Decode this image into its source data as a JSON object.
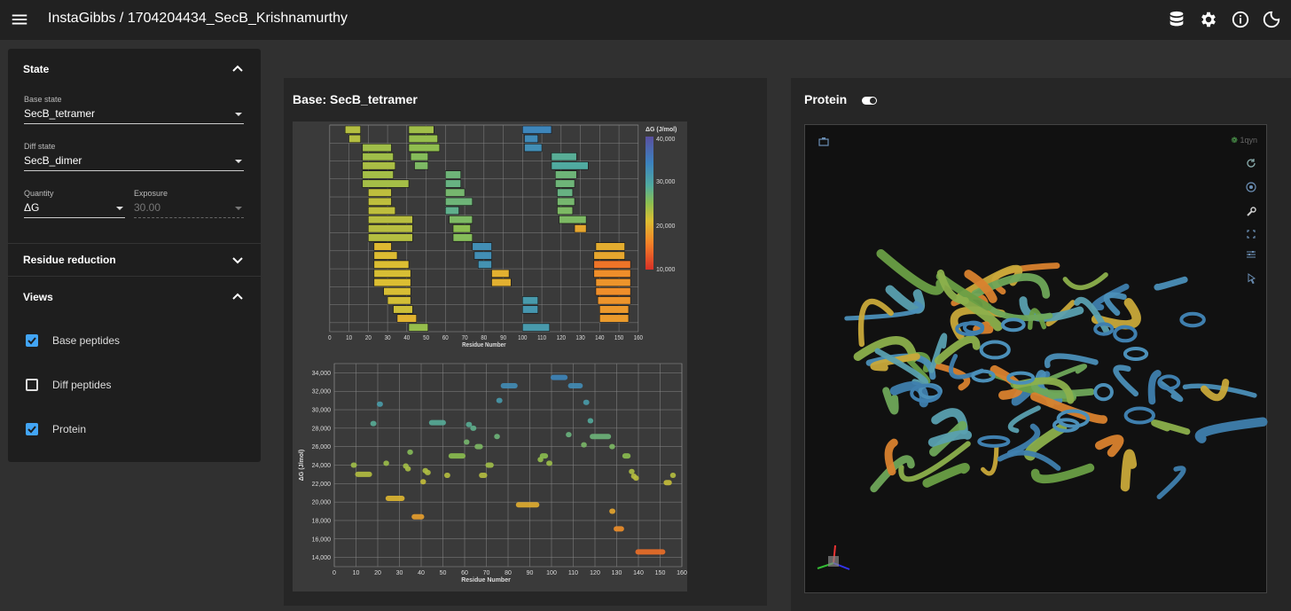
{
  "header": {
    "title": "InstaGibbs / 1704204434_SecB_Krishnamurthy",
    "icons": [
      "menu-icon",
      "database-icon",
      "gear-icon",
      "info-icon",
      "dark-mode-icon"
    ]
  },
  "sidebar": {
    "state": {
      "title": "State",
      "base_state_label": "Base state",
      "base_state_value": "SecB_tetramer",
      "diff_state_label": "Diff state",
      "diff_state_value": "SecB_dimer",
      "quantity_label": "Quantity",
      "quantity_value": "ΔG",
      "exposure_label": "Exposure",
      "exposure_value": "30.00"
    },
    "residue_reduction": {
      "title": "Residue reduction"
    },
    "views": {
      "title": "Views",
      "items": [
        {
          "label": "Base peptides",
          "checked": true
        },
        {
          "label": "Diff peptides",
          "checked": false
        },
        {
          "label": "Protein",
          "checked": true
        }
      ]
    }
  },
  "base_panel": {
    "title": "Base: SecB_tetramer"
  },
  "protein_panel": {
    "title": "Protein",
    "pdb_id": "1qyn"
  },
  "colors": {
    "accent": "#42a5f5",
    "background": "#303030",
    "panel": "#262626",
    "topbar": "#212121"
  },
  "chart_data": [
    {
      "type": "bar",
      "description_free": true,
      "xlabel": "Residue Number",
      "x_ticks": [
        0,
        10,
        20,
        30,
        40,
        50,
        60,
        70,
        80,
        90,
        100,
        110,
        120,
        130,
        140,
        150,
        160
      ],
      "xlim": [
        0,
        160
      ],
      "legend": {
        "title": "ΔG (J/mol)",
        "ticks": [
          "40,000",
          "30,000",
          "20,000",
          "10,000"
        ],
        "range": [
          10000,
          40000
        ],
        "placement": "top-right"
      },
      "peptides": [
        {
          "start": 8,
          "end": 16,
          "row": 0,
          "dG": 23000
        },
        {
          "start": 10,
          "end": 16,
          "row": 1,
          "dG": 23000
        },
        {
          "start": 17,
          "end": 32,
          "row": 2,
          "dG": 24000
        },
        {
          "start": 17,
          "end": 33,
          "row": 3,
          "dG": 24000
        },
        {
          "start": 17,
          "end": 34,
          "row": 4,
          "dG": 23500
        },
        {
          "start": 17,
          "end": 33,
          "row": 5,
          "dG": 23800
        },
        {
          "start": 17,
          "end": 41,
          "row": 6,
          "dG": 23800
        },
        {
          "start": 20,
          "end": 32,
          "row": 7,
          "dG": 22500
        },
        {
          "start": 20,
          "end": 32,
          "row": 8,
          "dG": 22500
        },
        {
          "start": 20,
          "end": 34,
          "row": 9,
          "dG": 22500
        },
        {
          "start": 20,
          "end": 43,
          "row": 10,
          "dG": 22800
        },
        {
          "start": 20,
          "end": 43,
          "row": 11,
          "dG": 22800
        },
        {
          "start": 20,
          "end": 43,
          "row": 12,
          "dG": 23000
        },
        {
          "start": 23,
          "end": 32,
          "row": 13,
          "dG": 20500
        },
        {
          "start": 23,
          "end": 35,
          "row": 14,
          "dG": 20800
        },
        {
          "start": 23,
          "end": 41,
          "row": 15,
          "dG": 21000
        },
        {
          "start": 23,
          "end": 42,
          "row": 16,
          "dG": 21200
        },
        {
          "start": 23,
          "end": 42,
          "row": 17,
          "dG": 21000
        },
        {
          "start": 28,
          "end": 42,
          "row": 18,
          "dG": 21200
        },
        {
          "start": 30,
          "end": 42,
          "row": 19,
          "dG": 21500
        },
        {
          "start": 33,
          "end": 43,
          "row": 20,
          "dG": 21800
        },
        {
          "start": 35,
          "end": 45,
          "row": 21,
          "dG": 20000
        },
        {
          "start": 41,
          "end": 51,
          "row": 22,
          "dG": 24500
        },
        {
          "start": 41,
          "end": 54,
          "row": 0,
          "dG": 24000
        },
        {
          "start": 41,
          "end": 56,
          "row": 1,
          "dG": 24500
        },
        {
          "start": 41,
          "end": 57,
          "row": 2,
          "dG": 24800
        },
        {
          "start": 42,
          "end": 51,
          "row": 3,
          "dG": 25500
        },
        {
          "start": 44,
          "end": 51,
          "row": 4,
          "dG": 26000
        },
        {
          "start": 60,
          "end": 68,
          "row": 5,
          "dG": 27000
        },
        {
          "start": 60,
          "end": 68,
          "row": 6,
          "dG": 27500
        },
        {
          "start": 60,
          "end": 70,
          "row": 7,
          "dG": 26500
        },
        {
          "start": 60,
          "end": 74,
          "row": 8,
          "dG": 27000
        },
        {
          "start": 60,
          "end": 67,
          "row": 9,
          "dG": 28000
        },
        {
          "start": 62,
          "end": 74,
          "row": 10,
          "dG": 26000
        },
        {
          "start": 64,
          "end": 73,
          "row": 11,
          "dG": 25000
        },
        {
          "start": 64,
          "end": 74,
          "row": 12,
          "dG": 25500
        },
        {
          "start": 74,
          "end": 84,
          "row": 13,
          "dG": 32500
        },
        {
          "start": 75,
          "end": 84,
          "row": 14,
          "dG": 32500
        },
        {
          "start": 77,
          "end": 84,
          "row": 15,
          "dG": 32000
        },
        {
          "start": 84,
          "end": 93,
          "row": 16,
          "dG": 19800
        },
        {
          "start": 84,
          "end": 94,
          "row": 17,
          "dG": 19800
        },
        {
          "start": 100,
          "end": 115,
          "row": 0,
          "dG": 33500
        },
        {
          "start": 101,
          "end": 108,
          "row": 1,
          "dG": 33000
        },
        {
          "start": 101,
          "end": 110,
          "row": 2,
          "dG": 32500
        },
        {
          "start": 115,
          "end": 128,
          "row": 3,
          "dG": 28500
        },
        {
          "start": 115,
          "end": 134,
          "row": 4,
          "dG": 29000
        },
        {
          "start": 117,
          "end": 128,
          "row": 5,
          "dG": 27000
        },
        {
          "start": 117,
          "end": 127,
          "row": 6,
          "dG": 27000
        },
        {
          "start": 118,
          "end": 126,
          "row": 7,
          "dG": 27500
        },
        {
          "start": 118,
          "end": 127,
          "row": 8,
          "dG": 26500
        },
        {
          "start": 118,
          "end": 126,
          "row": 9,
          "dG": 26000
        },
        {
          "start": 119,
          "end": 133,
          "row": 10,
          "dG": 26000
        },
        {
          "start": 127,
          "end": 133,
          "row": 11,
          "dG": 19000
        },
        {
          "start": 138,
          "end": 153,
          "row": 13,
          "dG": 19500
        },
        {
          "start": 137,
          "end": 153,
          "row": 14,
          "dG": 19000
        },
        {
          "start": 137,
          "end": 156,
          "row": 15,
          "dG": 15000
        },
        {
          "start": 137,
          "end": 156,
          "row": 16,
          "dG": 17000
        },
        {
          "start": 138,
          "end": 156,
          "row": 17,
          "dG": 17500
        },
        {
          "start": 138,
          "end": 156,
          "row": 18,
          "dG": 17000
        },
        {
          "start": 139,
          "end": 156,
          "row": 19,
          "dG": 17500
        },
        {
          "start": 140,
          "end": 155,
          "row": 20,
          "dG": 17800
        },
        {
          "start": 140,
          "end": 155,
          "row": 21,
          "dG": 18000
        },
        {
          "start": 100,
          "end": 108,
          "row": 19,
          "dG": 31000
        },
        {
          "start": 100,
          "end": 108,
          "row": 20,
          "dG": 31500
        },
        {
          "start": 100,
          "end": 114,
          "row": 22,
          "dG": 31000
        }
      ]
    },
    {
      "type": "scatter",
      "xlabel": "Residue Number",
      "ylabel": "ΔG (J/mol)",
      "x_ticks": [
        0,
        10,
        20,
        30,
        40,
        50,
        60,
        70,
        80,
        90,
        100,
        110,
        120,
        130,
        140,
        150,
        160
      ],
      "y_ticks": [
        "14,000",
        "16,000",
        "18,000",
        "20,000",
        "22,000",
        "24,000",
        "26,000",
        "28,000",
        "30,000",
        "32,000",
        "34,000"
      ],
      "xlim": [
        0,
        160
      ],
      "ylim": [
        13000,
        35000
      ],
      "segments": [
        {
          "start": 8,
          "end": 10,
          "dG": 24000
        },
        {
          "start": 10,
          "end": 17,
          "dG": 23000
        },
        {
          "start": 17,
          "end": 19,
          "dG": 28500
        },
        {
          "start": 20,
          "end": 22,
          "dG": 30600
        },
        {
          "start": 23,
          "end": 24,
          "dG": 24200
        },
        {
          "start": 24,
          "end": 32,
          "dG": 20400
        },
        {
          "start": 32,
          "end": 33,
          "dG": 23900
        },
        {
          "start": 33,
          "end": 34,
          "dG": 23600
        },
        {
          "start": 34,
          "end": 35,
          "dG": 25400
        },
        {
          "start": 36,
          "end": 41,
          "dG": 18400
        },
        {
          "start": 40,
          "end": 41,
          "dG": 22200
        },
        {
          "start": 41,
          "end": 42,
          "dG": 23400
        },
        {
          "start": 42,
          "end": 44,
          "dG": 23200
        },
        {
          "start": 44,
          "end": 51,
          "dG": 28600
        },
        {
          "start": 51,
          "end": 53,
          "dG": 22900
        },
        {
          "start": 53,
          "end": 60,
          "dG": 25000
        },
        {
          "start": 60,
          "end": 61,
          "dG": 26500
        },
        {
          "start": 61,
          "end": 63,
          "dG": 28400
        },
        {
          "start": 63,
          "end": 65,
          "dG": 28000
        },
        {
          "start": 65,
          "end": 68,
          "dG": 26000
        },
        {
          "start": 67,
          "end": 70,
          "dG": 22900
        },
        {
          "start": 70,
          "end": 73,
          "dG": 24000
        },
        {
          "start": 74,
          "end": 75,
          "dG": 27100
        },
        {
          "start": 75,
          "end": 77,
          "dG": 31000
        },
        {
          "start": 77,
          "end": 84,
          "dG": 32600
        },
        {
          "start": 84,
          "end": 94,
          "dG": 19700
        },
        {
          "start": 94,
          "end": 95,
          "dG": 24600
        },
        {
          "start": 95,
          "end": 98,
          "dG": 25000
        },
        {
          "start": 98,
          "end": 100,
          "dG": 24200
        },
        {
          "start": 100,
          "end": 107,
          "dG": 33500
        },
        {
          "start": 107,
          "end": 108,
          "dG": 27300
        },
        {
          "start": 108,
          "end": 114,
          "dG": 32600
        },
        {
          "start": 114,
          "end": 115,
          "dG": 26200
        },
        {
          "start": 115,
          "end": 117,
          "dG": 30800
        },
        {
          "start": 117,
          "end": 118,
          "dG": 28800
        },
        {
          "start": 118,
          "end": 127,
          "dG": 27100
        },
        {
          "start": 127,
          "end": 128,
          "dG": 26000
        },
        {
          "start": 127,
          "end": 129,
          "dG": 19000
        },
        {
          "start": 129,
          "end": 133,
          "dG": 17100
        },
        {
          "start": 133,
          "end": 136,
          "dG": 25000
        },
        {
          "start": 136,
          "end": 137,
          "dG": 23300
        },
        {
          "start": 137,
          "end": 138,
          "dG": 22800
        },
        {
          "start": 138,
          "end": 139,
          "dG": 22600
        },
        {
          "start": 139,
          "end": 152,
          "dG": 14600
        },
        {
          "start": 152,
          "end": 155,
          "dG": 22100
        },
        {
          "start": 155,
          "end": 156,
          "dG": 22900
        }
      ]
    }
  ]
}
